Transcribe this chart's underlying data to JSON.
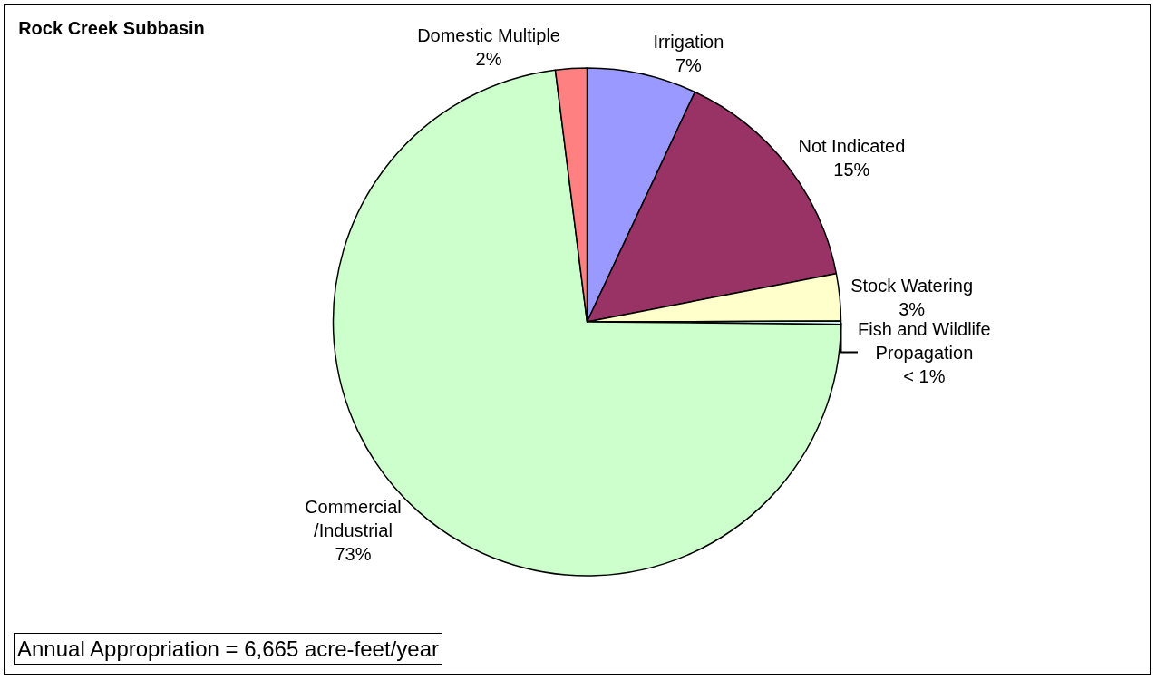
{
  "chart_data": {
    "type": "pie",
    "title": "Rock Creek Subbasin",
    "categories": [
      "Irrigation",
      "Not Indicated",
      "Stock Watering",
      "Fish and Wildlife Propagation",
      "Commercial /Industrial",
      "Domestic Multiple"
    ],
    "values": [
      7,
      15,
      3,
      0.2,
      73,
      2
    ],
    "colors": [
      "#9999ff",
      "#993366",
      "#ffffcc",
      "#ccffff",
      "#ccffcc",
      "#ff8080"
    ],
    "value_labels": [
      "7%",
      "15%",
      "3%",
      "< 1%",
      "73%",
      "2%"
    ],
    "annotations": [
      "Annual Appropriation = 6,665 acre-feet/year"
    ],
    "legend": false
  }
}
